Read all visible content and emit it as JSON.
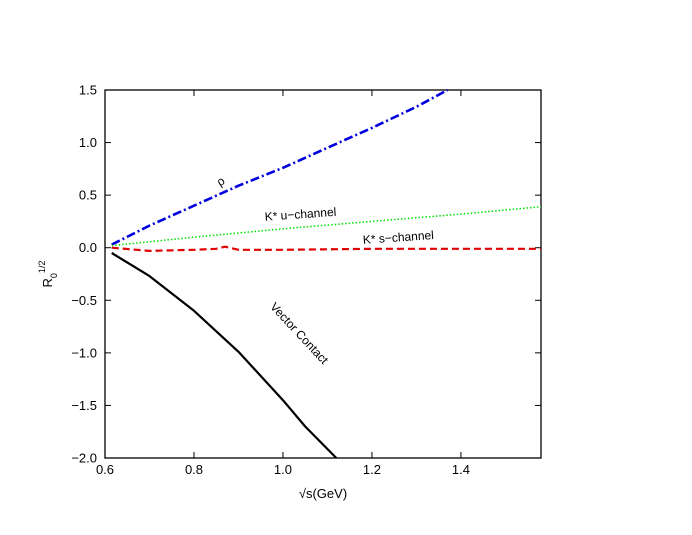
{
  "chart_data": {
    "type": "line",
    "xlabel": "√s(GeV)",
    "ylabel_main": "R",
    "ylabel_sub": "0",
    "ylabel_sup": "1/2",
    "xlim": [
      0.6,
      1.58
    ],
    "ylim": [
      -2.0,
      1.5
    ],
    "xticks": [
      0.6,
      0.8,
      1.0,
      1.2,
      1.4
    ],
    "xtick_labels": [
      "0.6",
      "0.8",
      "1.0",
      "1.2",
      "1.4"
    ],
    "yticks": [
      -2.0,
      -1.5,
      -1.0,
      -0.5,
      0.0,
      0.5,
      1.0,
      1.5
    ],
    "ytick_labels": [
      "−2.0",
      "−1.5",
      "−1.0",
      "−0.5",
      "0.0",
      "0.5",
      "1.0",
      "1.5"
    ],
    "grid": false,
    "series": [
      {
        "name": "ρ",
        "color": "#0000e0",
        "style": "dashdot",
        "x": [
          0.615,
          0.7,
          0.8,
          0.9,
          1.0,
          1.1,
          1.2,
          1.3,
          1.37
        ],
        "y": [
          0.03,
          0.21,
          0.4,
          0.59,
          0.76,
          0.95,
          1.14,
          1.34,
          1.5
        ]
      },
      {
        "name": "K* u−channel",
        "color": "#00e000",
        "style": "dotted",
        "x": [
          0.615,
          0.8,
          1.0,
          1.2,
          1.4,
          1.58
        ],
        "y": [
          0.02,
          0.1,
          0.18,
          0.25,
          0.32,
          0.39
        ]
      },
      {
        "name": "K* s−channel",
        "color": "#e00000",
        "style": "dashed",
        "x": [
          0.615,
          0.7,
          0.8,
          0.85,
          0.87,
          0.9,
          1.0,
          1.2,
          1.4,
          1.58
        ],
        "y": [
          0.0,
          -0.03,
          -0.02,
          -0.01,
          0.01,
          -0.02,
          -0.02,
          -0.01,
          -0.01,
          -0.01
        ]
      },
      {
        "name": "Vector Contact",
        "color": "#000000",
        "style": "solid",
        "x": [
          0.615,
          0.7,
          0.8,
          0.9,
          1.0,
          1.05,
          1.12
        ],
        "y": [
          -0.05,
          -0.27,
          -0.6,
          -0.99,
          -1.45,
          -1.7,
          -2.0
        ]
      }
    ],
    "annotations": [
      {
        "text": "ρ",
        "x": 0.865,
        "y": 0.6,
        "rotate": -33
      },
      {
        "text": "K* u−channel",
        "x": 1.04,
        "y": 0.28,
        "rotate": -4
      },
      {
        "text": "K* s−channel",
        "x": 1.26,
        "y": 0.06,
        "rotate": -4
      },
      {
        "text": "Vector Contact",
        "x": 1.03,
        "y": -0.84,
        "rotate": 47
      }
    ]
  }
}
